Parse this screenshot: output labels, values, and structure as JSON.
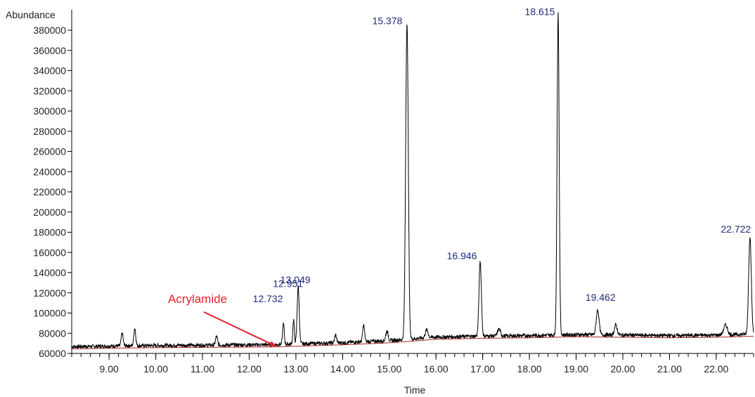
{
  "chart_data": {
    "type": "line",
    "title": "",
    "xlabel": "Time",
    "ylabel": "Abundance",
    "xlim": [
      8.2,
      22.8
    ],
    "ylim": [
      60000,
      396000
    ],
    "x_ticks": [
      9.0,
      10.0,
      11.0,
      12.0,
      13.0,
      14.0,
      15.0,
      16.0,
      17.0,
      18.0,
      19.0,
      20.0,
      21.0,
      22.0
    ],
    "x_tick_labels": [
      "9.00",
      "10.00",
      "11.00",
      "12.00",
      "13.00",
      "14.00",
      "15.00",
      "16.00",
      "17.00",
      "18.00",
      "19.00",
      "20.00",
      "21.00",
      "22.00"
    ],
    "y_ticks": [
      60000,
      80000,
      100000,
      120000,
      140000,
      160000,
      180000,
      200000,
      220000,
      240000,
      260000,
      280000,
      300000,
      320000,
      340000,
      360000,
      380000
    ],
    "y_tick_labels": [
      "60000",
      "80000",
      "100000",
      "120000",
      "140000",
      "160000",
      "180000",
      "200000",
      "220000",
      "240000",
      "260000",
      "280000",
      "300000",
      "320000",
      "340000",
      "360000",
      "380000"
    ],
    "grid": false,
    "legend": "none",
    "colors": {
      "trace": "#000000",
      "baseline": "#b22222",
      "peak_label": "#1f2a7a",
      "annotation": "#e4202a"
    },
    "baseline_level": 66000,
    "baseline_points": [
      {
        "x": 8.2,
        "y": 64500
      },
      {
        "x": 9.5,
        "y": 65500
      },
      {
        "x": 11.0,
        "y": 66000
      },
      {
        "x": 12.5,
        "y": 66500
      },
      {
        "x": 14.0,
        "y": 68500
      },
      {
        "x": 15.0,
        "y": 70500
      },
      {
        "x": 16.0,
        "y": 74000
      },
      {
        "x": 17.0,
        "y": 75000
      },
      {
        "x": 18.0,
        "y": 75500
      },
      {
        "x": 19.0,
        "y": 76500
      },
      {
        "x": 20.0,
        "y": 76000
      },
      {
        "x": 21.0,
        "y": 75500
      },
      {
        "x": 22.0,
        "y": 76000
      },
      {
        "x": 22.8,
        "y": 77000
      }
    ],
    "peaks": [
      {
        "x": 9.28,
        "y": 78000,
        "width": 0.02
      },
      {
        "x": 9.55,
        "y": 83000,
        "width": 0.02
      },
      {
        "x": 11.3,
        "y": 75000,
        "width": 0.02
      },
      {
        "x": 12.732,
        "y": 87000,
        "width": 0.018,
        "label": "12.732"
      },
      {
        "x": 12.951,
        "y": 91000,
        "width": 0.016,
        "label": "12.951"
      },
      {
        "x": 13.049,
        "y": 124000,
        "width": 0.022,
        "label": "13.049"
      },
      {
        "x": 13.85,
        "y": 76000,
        "width": 0.02
      },
      {
        "x": 14.45,
        "y": 86000,
        "width": 0.02
      },
      {
        "x": 14.95,
        "y": 80000,
        "width": 0.025
      },
      {
        "x": 15.378,
        "y": 386000,
        "width": 0.028,
        "label": "15.378"
      },
      {
        "x": 15.8,
        "y": 81000,
        "width": 0.03
      },
      {
        "x": 16.946,
        "y": 149000,
        "width": 0.025,
        "label": "16.946"
      },
      {
        "x": 17.35,
        "y": 82000,
        "width": 0.03
      },
      {
        "x": 18.615,
        "y": 395000,
        "width": 0.022,
        "label": "18.615"
      },
      {
        "x": 19.462,
        "y": 101000,
        "width": 0.03,
        "label": "19.462"
      },
      {
        "x": 19.85,
        "y": 86000,
        "width": 0.03
      },
      {
        "x": 22.2,
        "y": 86000,
        "width": 0.04
      },
      {
        "x": 22.722,
        "y": 174000,
        "width": 0.028,
        "label": "22.722"
      }
    ],
    "annotation": {
      "text": "Acrylamide",
      "target_x": 12.58,
      "target_y": 67000
    }
  }
}
